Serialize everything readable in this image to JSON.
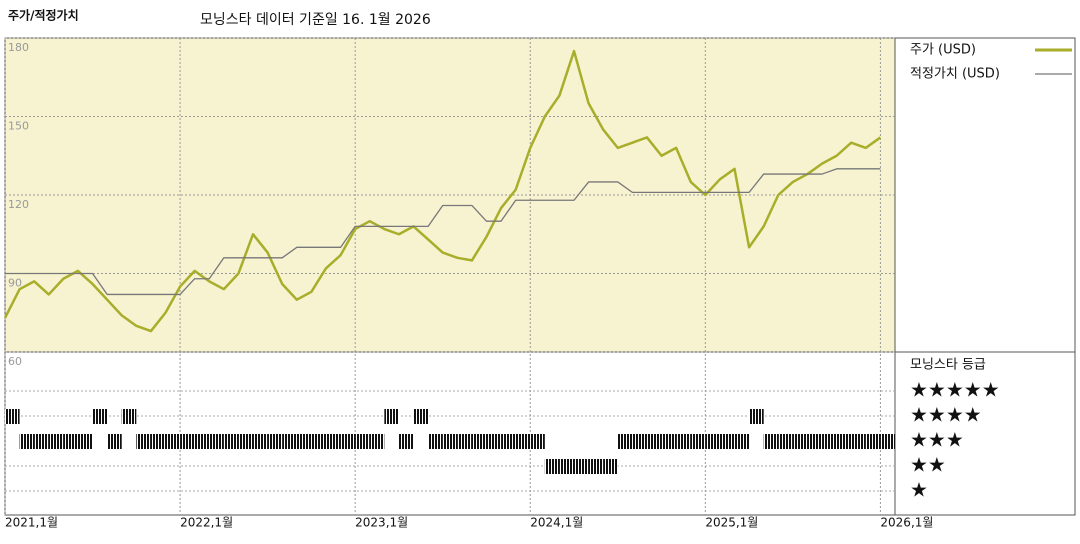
{
  "chart_data": {
    "type": "line",
    "title": "주가/적정가치",
    "subtitle": "모닝스타 데이터 기준일 16. 1월 2026",
    "x": [
      "2021-01",
      "2021-02",
      "2021-03",
      "2021-04",
      "2021-05",
      "2021-06",
      "2021-07",
      "2021-08",
      "2021-09",
      "2021-10",
      "2021-11",
      "2021-12",
      "2022-01",
      "2022-02",
      "2022-03",
      "2022-04",
      "2022-05",
      "2022-06",
      "2022-07",
      "2022-08",
      "2022-09",
      "2022-10",
      "2022-11",
      "2022-12",
      "2023-01",
      "2023-02",
      "2023-03",
      "2023-04",
      "2023-05",
      "2023-06",
      "2023-07",
      "2023-08",
      "2023-09",
      "2023-10",
      "2023-11",
      "2023-12",
      "2024-01",
      "2024-02",
      "2024-03",
      "2024-04",
      "2024-05",
      "2024-06",
      "2024-07",
      "2024-08",
      "2024-09",
      "2024-10",
      "2024-11",
      "2024-12",
      "2025-01",
      "2025-02",
      "2025-03",
      "2025-04",
      "2025-05",
      "2025-06",
      "2025-07",
      "2025-08",
      "2025-09",
      "2025-10",
      "2025-11",
      "2025-12",
      "2026-01"
    ],
    "xlim": [
      "2021-01",
      "2026-02"
    ],
    "xticks": [
      {
        "value": "2021-01",
        "label": "2021,1월"
      },
      {
        "value": "2022-01",
        "label": "2022,1월"
      },
      {
        "value": "2023-01",
        "label": "2023,1월"
      },
      {
        "value": "2024-01",
        "label": "2024,1월"
      },
      {
        "value": "2025-01",
        "label": "2025,1월"
      },
      {
        "value": "2026-01",
        "label": "2026,1월"
      }
    ],
    "ylim": [
      60,
      180
    ],
    "yticks": [
      60,
      90,
      120,
      150,
      180
    ],
    "grid": true,
    "series": [
      {
        "name": "주가 (USD)",
        "color": "#a8ad2a",
        "values": [
          73,
          84,
          87,
          82,
          88,
          91,
          86,
          80,
          74,
          70,
          68,
          75,
          85,
          91,
          87,
          84,
          90,
          105,
          98,
          86,
          80,
          83,
          92,
          97,
          107,
          110,
          107,
          105,
          108,
          103,
          98,
          96,
          95,
          104,
          115,
          122,
          138,
          150,
          158,
          175,
          155,
          145,
          138,
          140,
          142,
          135,
          138,
          125,
          120,
          126,
          130,
          100,
          108,
          120,
          125,
          128,
          132,
          135,
          140,
          138,
          142
        ]
      },
      {
        "name": "적정가치 (USD)",
        "color": "#777777",
        "values": [
          90,
          90,
          90,
          90,
          90,
          90,
          90,
          82,
          82,
          82,
          82,
          82,
          82,
          88,
          88,
          96,
          96,
          96,
          96,
          96,
          100,
          100,
          100,
          100,
          108,
          108,
          108,
          108,
          108,
          108,
          116,
          116,
          116,
          110,
          110,
          118,
          118,
          118,
          118,
          118,
          125,
          125,
          125,
          121,
          121,
          121,
          121,
          121,
          121,
          121,
          121,
          121,
          128,
          128,
          128,
          128,
          128,
          130,
          130,
          130,
          130
        ]
      }
    ],
    "ratings": {
      "name": "모닝스타 등급",
      "labels": [
        "★★★★★",
        "★★★★",
        "★★★",
        "★★",
        "★"
      ],
      "levels": [
        5,
        4,
        3,
        2,
        1
      ],
      "values": [
        4,
        3,
        3,
        3,
        3,
        3,
        4,
        3,
        4,
        3,
        3,
        3,
        3,
        3,
        3,
        3,
        3,
        3,
        3,
        3,
        3,
        3,
        3,
        3,
        3,
        3,
        4,
        3,
        4,
        3,
        3,
        3,
        3,
        3,
        3,
        3,
        3,
        2,
        2,
        2,
        2,
        2,
        3,
        3,
        3,
        3,
        3,
        3,
        3,
        3,
        3,
        4,
        3,
        3,
        3,
        3,
        3,
        3,
        3,
        3,
        3
      ]
    }
  }
}
